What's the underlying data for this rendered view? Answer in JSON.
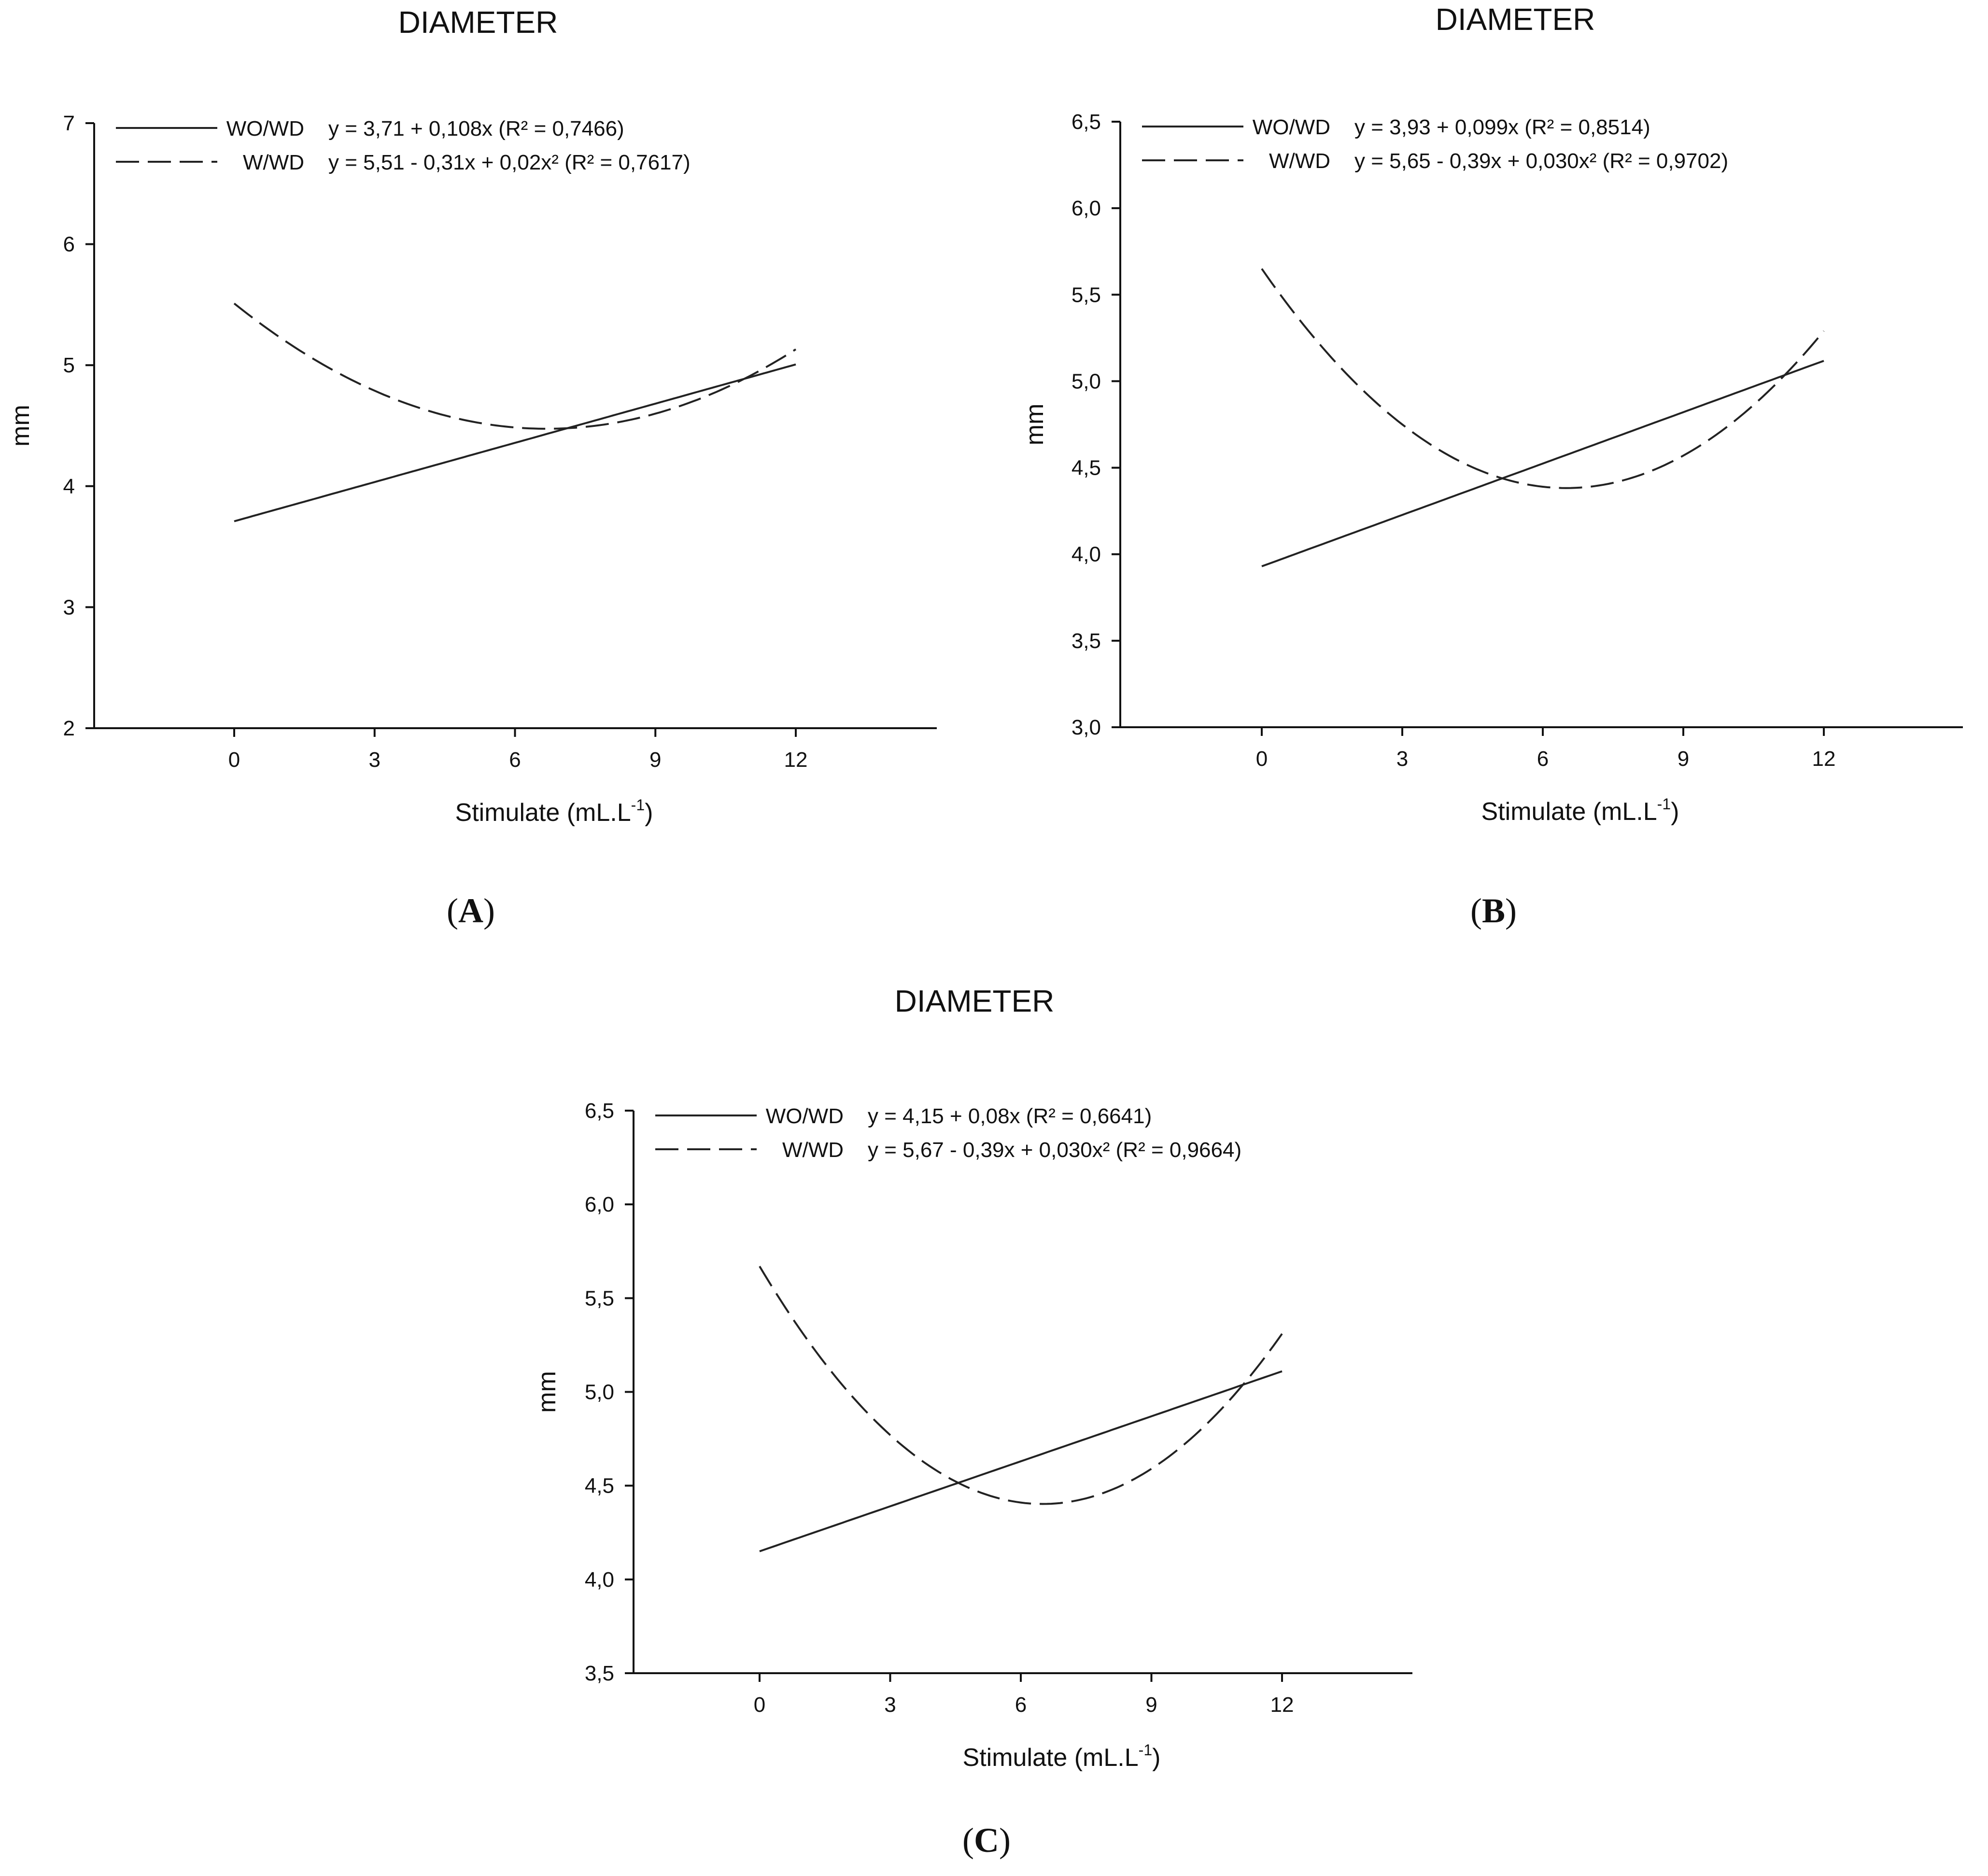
{
  "panel_labels": [
    "A",
    "B",
    "C"
  ],
  "chart_data": [
    {
      "panel": "A",
      "type": "line",
      "title": "DIAMETER",
      "xlabel": "Stimulate (mL.L",
      "xlabel_sup": "-1",
      "xlabel_close": ")",
      "ylabel": "mm",
      "xlim": [
        -3,
        15
      ],
      "ylim": [
        2,
        7
      ],
      "xticks": [
        0,
        3,
        6,
        9,
        12
      ],
      "xtick_labels": [
        "0",
        "3",
        "6",
        "9",
        "12"
      ],
      "yticks": [
        2,
        3,
        4,
        5,
        6,
        7
      ],
      "ytick_labels": [
        "2",
        "3",
        "4",
        "5",
        "6",
        "7"
      ],
      "series": [
        {
          "name": "WO/WD",
          "style": "solid",
          "equation": "y = 3,71 + 0,108x (R² = 0,7466)",
          "coefficients": [
            3.71,
            0.108,
            0
          ],
          "x_range": [
            0,
            12
          ]
        },
        {
          "name": "W/WD",
          "style": "dashed",
          "equation": "y = 5,51 - 0,31x + 0,02x² (R² = 0,7617)",
          "coefficients": [
            5.51,
            -0.31,
            0.0232
          ],
          "x_range": [
            0,
            12
          ]
        }
      ]
    },
    {
      "panel": "B",
      "type": "line",
      "title": "DIAMETER",
      "xlabel": "Stimulate (mL.L",
      "xlabel_sup": "-1",
      "xlabel_close": ")",
      "ylabel": "mm",
      "xlim": [
        -3,
        15
      ],
      "ylim": [
        3.0,
        6.5
      ],
      "xticks": [
        0,
        3,
        6,
        9,
        12
      ],
      "xtick_labels": [
        "0",
        "3",
        "6",
        "9",
        "12"
      ],
      "yticks": [
        3.0,
        3.5,
        4.0,
        4.5,
        5.0,
        5.5,
        6.0,
        6.5
      ],
      "ytick_labels": [
        "3,0",
        "3,5",
        "4,0",
        "4,5",
        "5,0",
        "5,5",
        "6,0",
        "6,5"
      ],
      "series": [
        {
          "name": "WO/WD",
          "style": "solid",
          "equation": "y = 3,93 + 0,099x (R² = 0,8514)",
          "coefficients": [
            3.93,
            0.099,
            0
          ],
          "x_range": [
            0,
            12
          ]
        },
        {
          "name": "W/WD",
          "style": "dashed",
          "equation": "y = 5,65 - 0,39x + 0,030x² (R² = 0,9702)",
          "coefficients": [
            5.65,
            -0.39,
            0.03
          ],
          "x_range": [
            0,
            12
          ]
        }
      ]
    },
    {
      "panel": "C",
      "type": "line",
      "title": "DIAMETER",
      "xlabel": "Stimulate (mL.L",
      "xlabel_sup": "-1",
      "xlabel_close": ")",
      "ylabel": "mm",
      "xlim": [
        -3,
        15
      ],
      "ylim": [
        3.5,
        6.5
      ],
      "xticks": [
        0,
        3,
        6,
        9,
        12
      ],
      "xtick_labels": [
        "0",
        "3",
        "6",
        "9",
        "12"
      ],
      "yticks": [
        3.5,
        4.0,
        4.5,
        5.0,
        5.5,
        6.0,
        6.5
      ],
      "ytick_labels": [
        "3,5",
        "4,0",
        "4,5",
        "5,0",
        "5,5",
        "6,0",
        "6,5"
      ],
      "series": [
        {
          "name": "WO/WD",
          "style": "solid",
          "equation": "y = 4,15 + 0,08x (R² = 0,6641)",
          "coefficients": [
            4.15,
            0.08,
            0
          ],
          "x_range": [
            0,
            12
          ]
        },
        {
          "name": "W/WD",
          "style": "dashed",
          "equation": "y = 5,67 - 0,39x + 0,030x² (R² = 0,9664)",
          "coefficients": [
            5.67,
            -0.39,
            0.03
          ],
          "x_range": [
            0,
            12
          ]
        }
      ]
    }
  ]
}
